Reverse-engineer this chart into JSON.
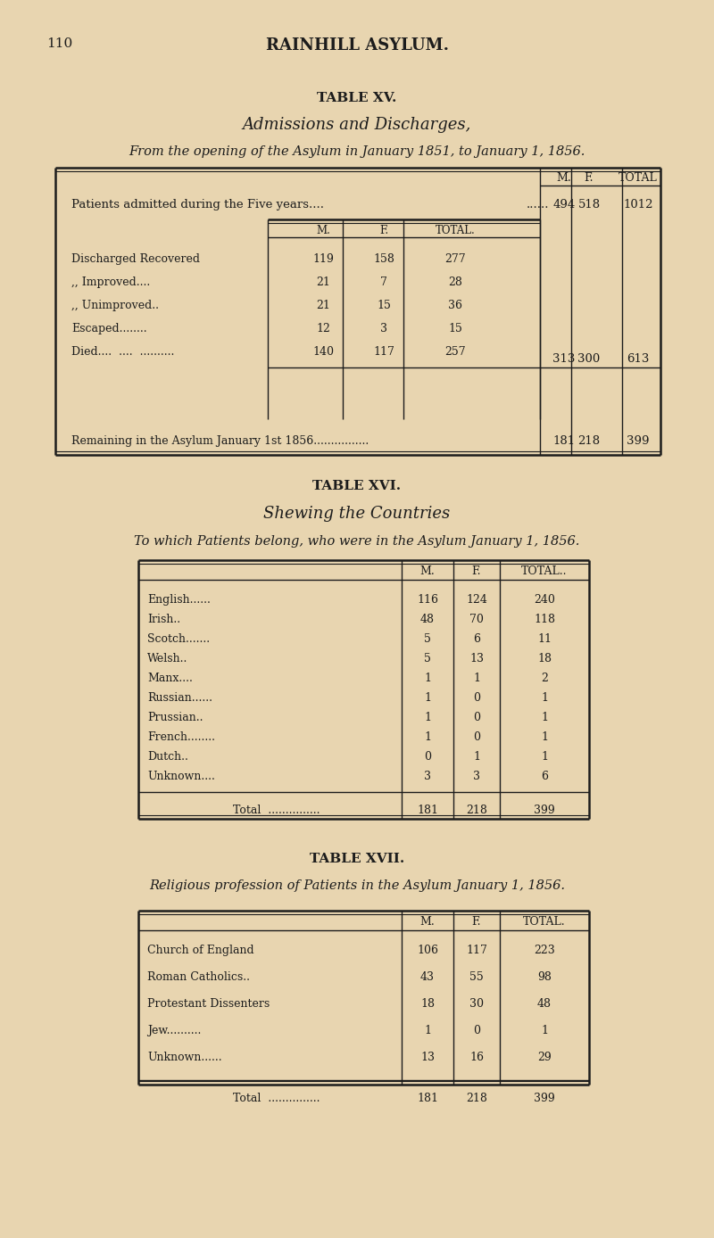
{
  "bg_color": "#e8d5b0",
  "page_num": "110",
  "header": "RAINHILL ASYLUM.",
  "t15_title": "TABLE XV.",
  "t15_sub1": "Admissions and Discharges,",
  "t15_sub2": "From the opening of the Asylum in January 1851, to January 1, 1856.",
  "t16_title": "TABLE XVI.",
  "t16_sub1": "Shewing the Countries",
  "t16_sub2": "To which Patients belong, who were in the Asylum January 1, 1856.",
  "t17_title": "TABLE XVII.",
  "t17_sub": "Religious profession of Patients in the Asylum January 1, 1856."
}
